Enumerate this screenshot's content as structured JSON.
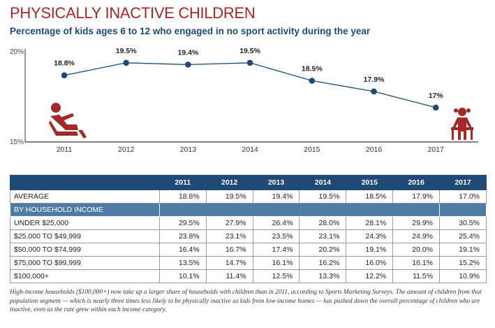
{
  "title": "PHYSICALLY INACTIVE CHILDREN",
  "subtitle": "Percentage of kids ages 6 to 12 who engaged in no sport activity during the year",
  "chart_data": {
    "type": "line",
    "x": [
      "2011",
      "2012",
      "2013",
      "2014",
      "2015",
      "2016",
      "2017"
    ],
    "values": [
      18.8,
      19.5,
      19.4,
      19.5,
      18.5,
      17.9,
      17.0
    ],
    "data_labels": [
      "18.8%",
      "19.5%",
      "19.4%",
      "19.5%",
      "18.5%",
      "17.9%",
      "17%"
    ],
    "ylim": [
      15,
      20
    ],
    "yticks": [
      "15%",
      "20%"
    ],
    "grid": false,
    "colors": {
      "line": "#1f4a78",
      "accent": "#a3282a"
    },
    "icons": [
      "sitting-child-icon",
      "seated-girl-icon"
    ]
  },
  "table": {
    "headers": [
      "",
      "2011",
      "2012",
      "2013",
      "2014",
      "2015",
      "2016",
      "2017"
    ],
    "average": {
      "label": "AVERAGE",
      "values": [
        "18.8%",
        "19.5%",
        "19.4%",
        "19.5%",
        "18.5%",
        "17.9%",
        "17.0%"
      ]
    },
    "section_label": "BY HOUSEHOLD INCOME",
    "rows": [
      {
        "label": "UNDER $25,000",
        "values": [
          "29.5%",
          "27.9%",
          "26.4%",
          "28.0%",
          "28.1%",
          "29.9%",
          "30.5%"
        ]
      },
      {
        "label": "$25,000 TO $49,999",
        "values": [
          "23.8%",
          "23.1%",
          "23.5%",
          "23.1%",
          "24.3%",
          "24.9%",
          "25.4%"
        ]
      },
      {
        "label": "$50,000 TO $74,999",
        "values": [
          "16.4%",
          "16.7%",
          "17.4%",
          "20.2%",
          "19.1%",
          "20.0%",
          "19.1%"
        ]
      },
      {
        "label": "$75,000 TO $99,999",
        "values": [
          "13.5%",
          "14.7%",
          "16.1%",
          "16.2%",
          "16.0%",
          "16.1%",
          "15.2%"
        ]
      },
      {
        "label": "$100,000+",
        "values": [
          "10.1%",
          "11.4%",
          "12.5%",
          "13.3%",
          "12.2%",
          "11.5%",
          "10.9%"
        ]
      }
    ]
  },
  "caption": "High-income households ($100,000+) now take up a larger share of households with children than in 2011, according to Sports Marketing Surveys. The amount of children from that population segment — which is nearly three times less likely to be physically inactive as kids from low-income homes — has pushed down the overall percentage of children who are inactive, even as the rate grew within each income category."
}
